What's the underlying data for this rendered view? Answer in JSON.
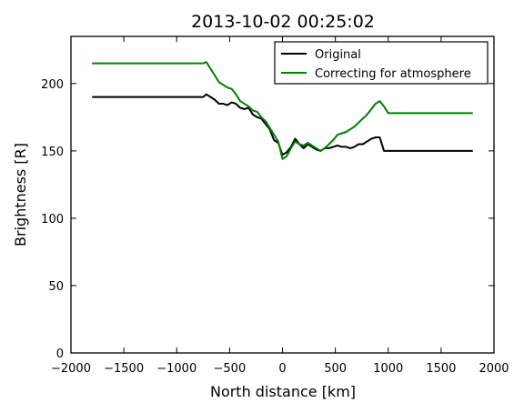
{
  "chart_data": {
    "type": "line",
    "title": "2013-10-02 00:25:02",
    "xlabel": "North distance [km]",
    "ylabel": "Brightness [R]",
    "xlim": [
      -2000,
      2000
    ],
    "ylim": [
      0,
      235
    ],
    "xticks": [
      -2000,
      -1500,
      -1000,
      -500,
      0,
      500,
      1000,
      1500,
      2000
    ],
    "xtick_labels": [
      "−2000",
      "−1500",
      "−1000",
      "−500",
      "0",
      "500",
      "1000",
      "1500",
      "2000"
    ],
    "yticks": [
      0,
      50,
      100,
      150,
      200
    ],
    "ytick_labels": [
      "0",
      "50",
      "100",
      "150",
      "200"
    ],
    "legend_position": "top-right",
    "grid": false,
    "series": [
      {
        "name": "Original",
        "color": "#000000",
        "x": [
          -1800,
          -750,
          -720,
          -680,
          -640,
          -600,
          -560,
          -520,
          -480,
          -440,
          -400,
          -360,
          -320,
          -280,
          -240,
          -200,
          -160,
          -120,
          -80,
          -40,
          0,
          40,
          80,
          120,
          160,
          200,
          240,
          280,
          320,
          360,
          400,
          440,
          480,
          520,
          560,
          600,
          640,
          680,
          720,
          760,
          800,
          840,
          880,
          920,
          960,
          1000,
          1800
        ],
        "y": [
          190,
          190,
          192,
          190,
          188,
          185,
          185,
          184,
          186,
          185,
          182,
          181,
          182,
          177,
          175,
          174,
          170,
          166,
          158,
          156,
          147,
          149,
          153,
          159,
          155,
          152,
          155,
          153,
          151,
          150,
          152,
          152,
          153,
          154,
          153,
          153,
          152,
          153,
          155,
          155,
          157,
          159,
          160,
          160,
          150,
          150,
          150
        ]
      },
      {
        "name": "Correcting for atmosphere",
        "color": "#008000",
        "x": [
          -1800,
          -750,
          -720,
          -680,
          -640,
          -600,
          -560,
          -520,
          -480,
          -440,
          -400,
          -360,
          -320,
          -280,
          -240,
          -200,
          -160,
          -120,
          -80,
          -40,
          0,
          40,
          80,
          120,
          160,
          200,
          240,
          280,
          320,
          360,
          400,
          440,
          480,
          520,
          560,
          600,
          640,
          680,
          720,
          760,
          800,
          840,
          880,
          920,
          960,
          1000,
          1800
        ],
        "y": [
          215,
          215,
          216,
          211,
          206,
          201,
          199,
          197,
          196,
          192,
          187,
          185,
          183,
          180,
          179,
          175,
          172,
          167,
          162,
          157,
          144,
          146,
          152,
          157,
          155,
          154,
          156,
          154,
          152,
          150,
          152,
          155,
          158,
          162,
          163,
          164,
          166,
          168,
          171,
          174,
          177,
          181,
          185,
          187,
          183,
          178,
          178
        ]
      }
    ]
  }
}
